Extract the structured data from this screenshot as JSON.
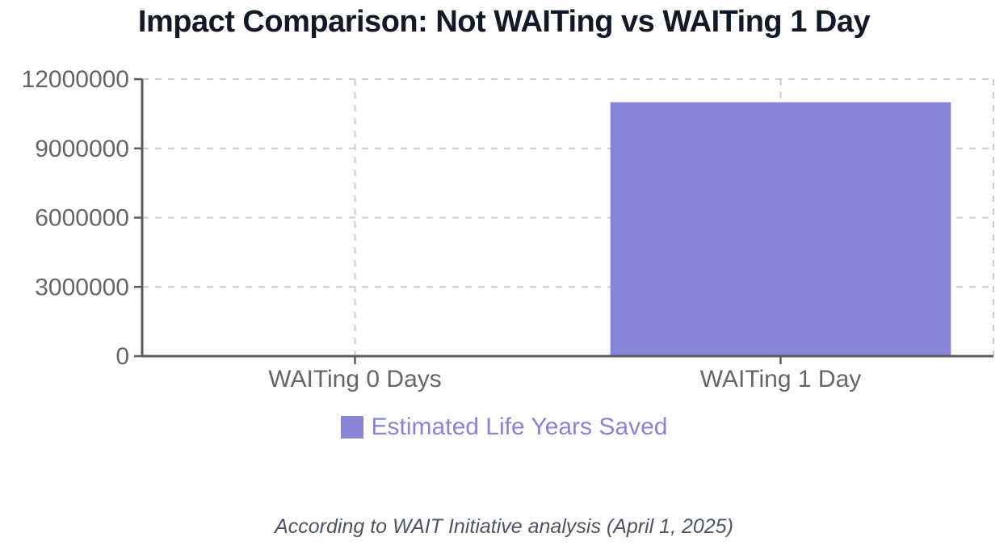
{
  "title": "Impact Comparison: Not WAITing vs WAITing 1 Day",
  "caption": "According to WAIT Initiative analysis (April 1, 2025)",
  "legend": {
    "label": "Estimated Life Years Saved"
  },
  "colors": {
    "bar": "#8884d8",
    "legend_text": "#8884d8",
    "title_text": "#111827",
    "axis": "#5b5b5b",
    "tick_label": "#666666",
    "grid": "#cccccc",
    "caption_text": "#4b5563",
    "background": "#ffffff"
  },
  "chart_data": {
    "type": "bar",
    "categories": [
      "WAITing 0 Days",
      "WAITing 1 Day"
    ],
    "series": [
      {
        "name": "Estimated Life Years Saved",
        "values": [
          0,
          11000000
        ],
        "color": "#8884d8"
      }
    ],
    "title": "Impact Comparison: Not WAITing vs WAITing 1 Day",
    "xlabel": "",
    "ylabel": "",
    "ylim": [
      0,
      12000000
    ],
    "yticks": [
      0,
      3000000,
      6000000,
      9000000,
      12000000
    ],
    "ytick_labels": [
      "0",
      "3000000",
      "6000000",
      "9000000",
      "12000000"
    ],
    "grid": "dashed",
    "legend_position": "bottom",
    "annotation": "According to WAIT Initiative analysis (April 1, 2025)"
  }
}
